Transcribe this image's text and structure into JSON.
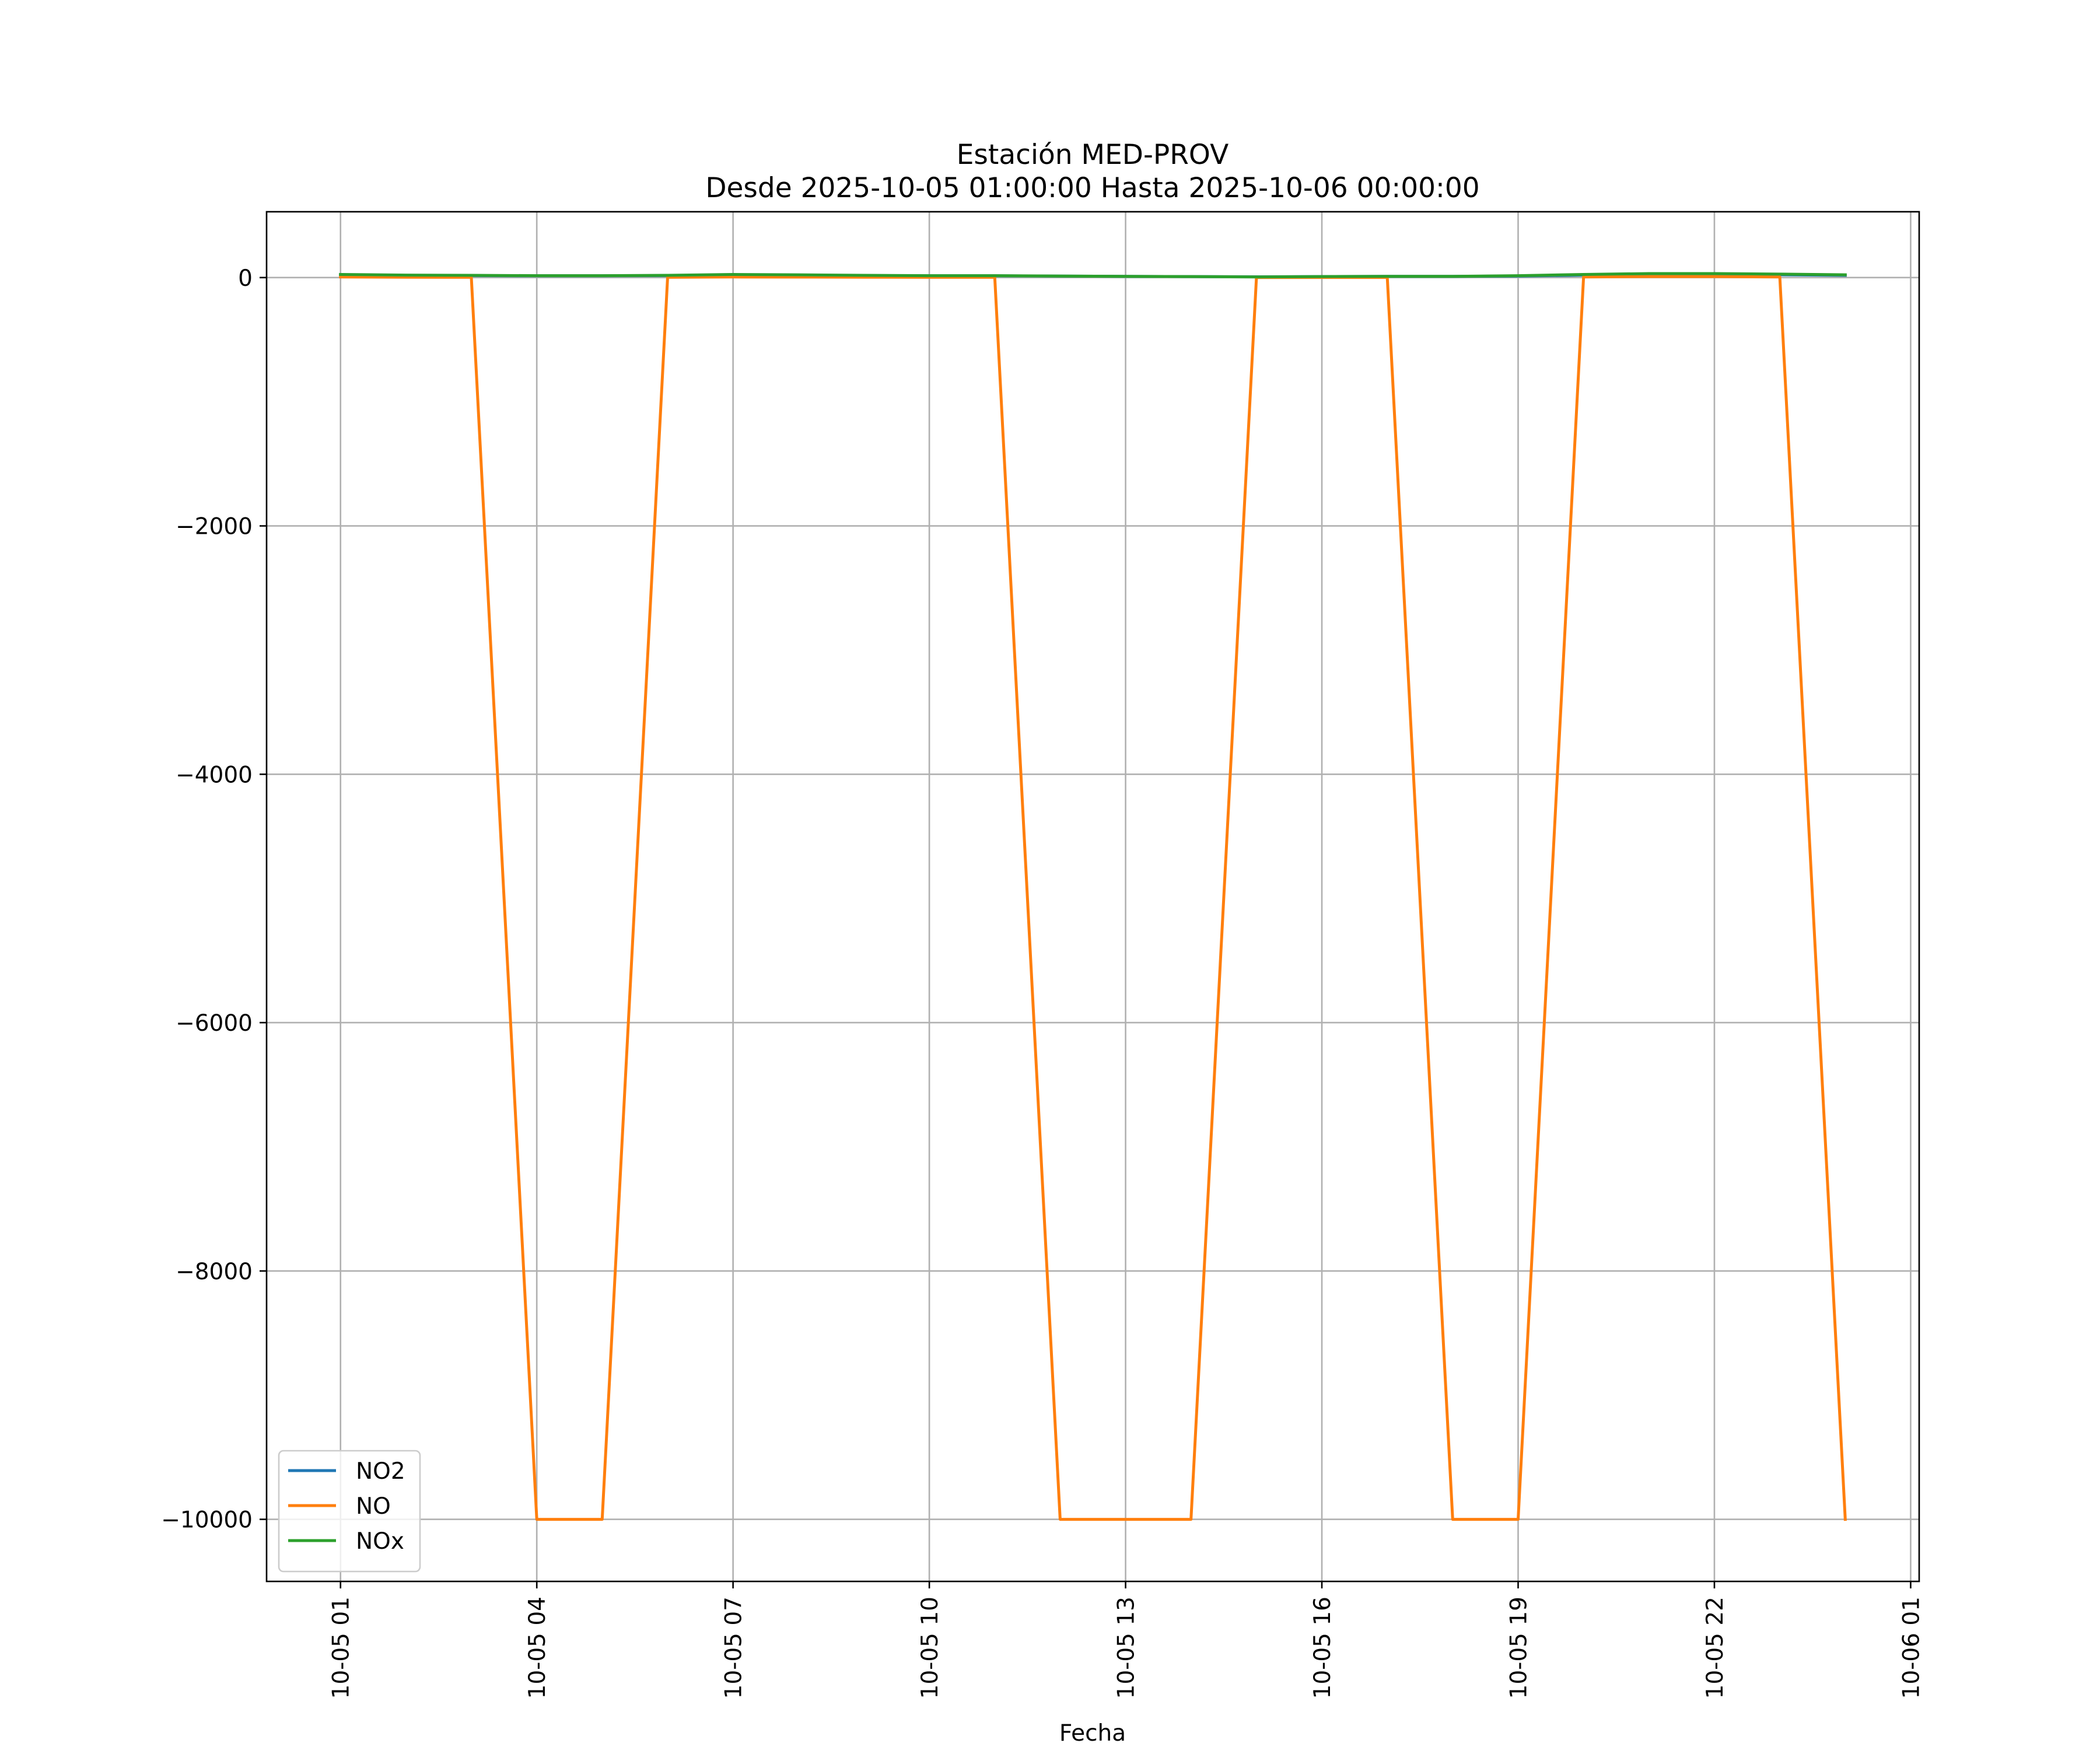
{
  "chart_data": {
    "type": "line",
    "title": "Estación MED-PROV",
    "subtitle": "Desde 2025-10-05 01:00:00 Hasta 2025-10-06 00:00:00",
    "xlabel": "Fecha",
    "ylabel": "",
    "x": [
      "2025-10-05 01:00",
      "2025-10-05 02:00",
      "2025-10-05 03:00",
      "2025-10-05 04:00",
      "2025-10-05 05:00",
      "2025-10-05 06:00",
      "2025-10-05 07:00",
      "2025-10-05 08:00",
      "2025-10-05 09:00",
      "2025-10-05 10:00",
      "2025-10-05 11:00",
      "2025-10-05 12:00",
      "2025-10-05 13:00",
      "2025-10-05 14:00",
      "2025-10-05 15:00",
      "2025-10-05 16:00",
      "2025-10-05 17:00",
      "2025-10-05 18:00",
      "2025-10-05 19:00",
      "2025-10-05 20:00",
      "2025-10-05 21:00",
      "2025-10-05 22:00",
      "2025-10-05 23:00",
      "2025-10-06 00:00"
    ],
    "series": [
      {
        "name": "NO2",
        "color": "#1f77b4",
        "values": [
          22,
          18,
          16,
          14,
          14,
          16,
          20,
          18,
          16,
          14,
          14,
          12,
          10,
          8,
          6,
          8,
          10,
          10,
          12,
          20,
          25,
          25,
          22,
          18
        ]
      },
      {
        "name": "NO",
        "color": "#ff7f0e",
        "values": [
          5,
          3,
          2,
          -10000,
          -10000,
          2,
          5,
          4,
          3,
          2,
          2,
          -10000,
          -10000,
          -10000,
          0,
          1,
          1,
          -10000,
          -10000,
          5,
          8,
          8,
          5,
          -10000
        ]
      },
      {
        "name": "NOx",
        "color": "#2ca02c",
        "values": [
          25,
          20,
          18,
          15,
          15,
          18,
          25,
          22,
          18,
          15,
          15,
          12,
          10,
          8,
          5,
          8,
          10,
          10,
          15,
          25,
          32,
          32,
          28,
          22
        ]
      }
    ],
    "xticks": [
      "10-05 01",
      "10-05 04",
      "10-05 07",
      "10-05 10",
      "10-05 13",
      "10-05 16",
      "10-05 19",
      "10-05 22",
      "10-06 01"
    ],
    "yticks": [
      "0",
      "−2000",
      "−4000",
      "−6000",
      "−8000",
      "−10000"
    ],
    "ytick_values": [
      0,
      -2000,
      -4000,
      -6000,
      -8000,
      -10000
    ],
    "ylim": [
      -10500,
      530
    ],
    "xlim_hours": [
      -1.13,
      24.13
    ],
    "grid": true,
    "legend_position": "lower-left"
  }
}
